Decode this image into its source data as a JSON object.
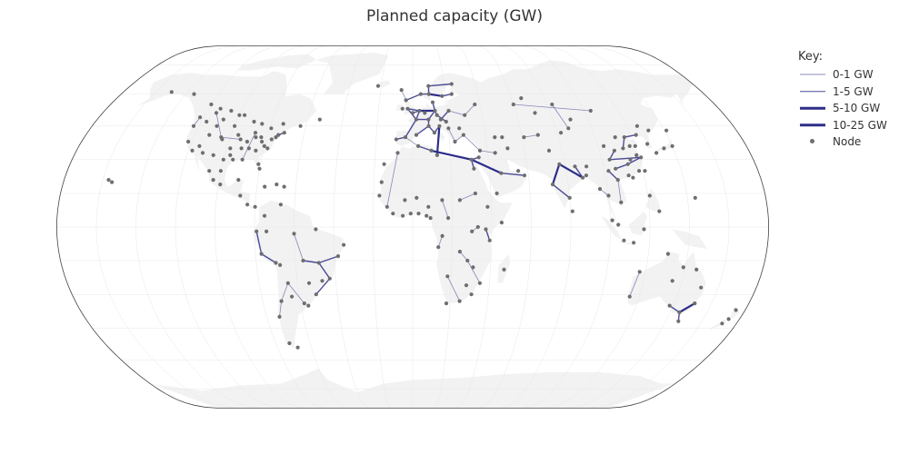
{
  "map": {
    "title": "Planned capacity (GW)",
    "projection": "natural-earth",
    "colors": {
      "ocean": "#ffffff",
      "land": "#f2f2f2",
      "graticule": "#e8e8e8",
      "frame": "#444444",
      "node": "#6e6e6e",
      "line": "#2d2d8a"
    }
  },
  "legend": {
    "title": "Key:",
    "items": [
      {
        "label": "0-1 GW",
        "kind": "line",
        "opacity": 0.55
      },
      {
        "label": "1-5 GW",
        "kind": "line",
        "opacity": 0.85
      },
      {
        "label": "5-10 GW",
        "kind": "line",
        "opacity": 1
      },
      {
        "label": "10-25 GW",
        "kind": "line",
        "opacity": 1
      },
      {
        "label": "Node",
        "kind": "dot",
        "opacity": 1
      }
    ]
  },
  "nodes": [
    [
      -122,
      49
    ],
    [
      -123,
      45
    ],
    [
      -122,
      38
    ],
    [
      -118,
      34
    ],
    [
      -112,
      33
    ],
    [
      -105,
      40
    ],
    [
      -97,
      32
    ],
    [
      -95,
      30
    ],
    [
      -90,
      30
    ],
    [
      -87,
      42
    ],
    [
      -84,
      34
    ],
    [
      -80,
      26
    ],
    [
      -80,
      36
    ],
    [
      -75,
      40
    ],
    [
      -74,
      41
    ],
    [
      -71,
      42
    ],
    [
      -79,
      44
    ],
    [
      -73,
      46
    ],
    [
      -104,
      39
    ],
    [
      -112,
      41
    ],
    [
      -115,
      36
    ],
    [
      -96,
      41
    ],
    [
      -94,
      39
    ],
    [
      -90,
      38
    ],
    [
      -86,
      40
    ],
    [
      -83,
      40
    ],
    [
      -81,
      28
    ],
    [
      -77,
      39
    ],
    [
      -100,
      50
    ],
    [
      -114,
      51
    ],
    [
      -113,
      53
    ],
    [
      -106,
      52
    ],
    [
      -97,
      50
    ],
    [
      -150,
      61
    ],
    [
      -135,
      60
    ],
    [
      -63,
      45
    ],
    [
      -53,
      48
    ],
    [
      -120,
      55
    ],
    [
      -110,
      45
    ],
    [
      -100,
      45
    ],
    [
      -117,
      47
    ],
    [
      -108,
      48
    ],
    [
      -90,
      47
    ],
    [
      -85,
      46
    ],
    [
      -78,
      35
    ],
    [
      -82,
      38
    ],
    [
      -88,
      35
    ],
    [
      -92,
      35
    ],
    [
      -98,
      35
    ],
    [
      -100,
      30
    ],
    [
      -106,
      32
    ],
    [
      -155,
      20
    ],
    [
      -99,
      19
    ],
    [
      -103,
      21
    ],
    [
      -90,
      21
    ],
    [
      -106,
      25
    ],
    [
      -100,
      25
    ],
    [
      -88,
      14
    ],
    [
      -84,
      10
    ],
    [
      -80,
      9
    ],
    [
      -76,
      18
    ],
    [
      -70,
      19
    ],
    [
      -66,
      18
    ],
    [
      -75,
      5
    ],
    [
      -74,
      -2
    ],
    [
      -67,
      10
    ],
    [
      -79,
      -2
    ],
    [
      -77,
      -12
    ],
    [
      -70,
      -16
    ],
    [
      -68,
      -17
    ],
    [
      -65,
      -25
    ],
    [
      -70,
      -33
    ],
    [
      -73,
      -40
    ],
    [
      -58,
      -34
    ],
    [
      -56,
      -35
    ],
    [
      -64,
      -31
    ],
    [
      -48,
      -16
    ],
    [
      -51,
      -30
    ],
    [
      -47,
      -24
    ],
    [
      -43,
      -23
    ],
    [
      -38,
      -13
    ],
    [
      -35,
      -8
    ],
    [
      -49,
      -1
    ],
    [
      -60,
      -3
    ],
    [
      -56,
      -15
    ],
    [
      -54,
      -25
    ],
    [
      -72,
      -52
    ],
    [
      -68,
      -54
    ],
    [
      -9,
      39
    ],
    [
      -4,
      40
    ],
    [
      2,
      41
    ],
    [
      2,
      48
    ],
    [
      0,
      51
    ],
    [
      -3,
      53
    ],
    [
      -6,
      53
    ],
    [
      4,
      52
    ],
    [
      7,
      51
    ],
    [
      9,
      48
    ],
    [
      13,
      52
    ],
    [
      14,
      50
    ],
    [
      16,
      48
    ],
    [
      19,
      47
    ],
    [
      21,
      52
    ],
    [
      12,
      42
    ],
    [
      9,
      45
    ],
    [
      23,
      38
    ],
    [
      26,
      44
    ],
    [
      28,
      41
    ],
    [
      30,
      50
    ],
    [
      37,
      55
    ],
    [
      24,
      60
    ],
    [
      18,
      59
    ],
    [
      10,
      60
    ],
    [
      10,
      64
    ],
    [
      25,
      65
    ],
    [
      -22,
      64
    ],
    [
      5,
      60
    ],
    [
      -4,
      57
    ],
    [
      12,
      56
    ],
    [
      15,
      45
    ],
    [
      20,
      44
    ],
    [
      -7,
      62
    ],
    [
      -8,
      33
    ],
    [
      3,
      36
    ],
    [
      10,
      34
    ],
    [
      13,
      32
    ],
    [
      31,
      30
    ],
    [
      32,
      26
    ],
    [
      -17,
      14
    ],
    [
      -4,
      12
    ],
    [
      2,
      13
    ],
    [
      8,
      9
    ],
    [
      -1,
      6
    ],
    [
      7,
      5
    ],
    [
      3,
      6
    ],
    [
      -13,
      9
    ],
    [
      -10,
      6
    ],
    [
      -5,
      5
    ],
    [
      9,
      4
    ],
    [
      15,
      12
    ],
    [
      18,
      4
    ],
    [
      24,
      12
    ],
    [
      32,
      15
    ],
    [
      38,
      9
    ],
    [
      45,
      2
    ],
    [
      37,
      -1
    ],
    [
      30,
      -2
    ],
    [
      33,
      0
    ],
    [
      39,
      -6
    ],
    [
      15,
      -4
    ],
    [
      24,
      -11
    ],
    [
      28,
      -15
    ],
    [
      31,
      -18
    ],
    [
      35,
      -25
    ],
    [
      28,
      -26
    ],
    [
      18,
      -22
    ],
    [
      25,
      -33
    ],
    [
      18,
      -34
    ],
    [
      31,
      -30
    ],
    [
      47,
      -19
    ],
    [
      13,
      -9
    ],
    [
      -15,
      28
    ],
    [
      -16,
      20
    ],
    [
      35,
      31
    ],
    [
      36,
      34
    ],
    [
      44,
      33
    ],
    [
      51,
      35
    ],
    [
      46,
      24
    ],
    [
      55,
      25
    ],
    [
      58,
      23
    ],
    [
      43,
      15
    ],
    [
      69,
      41
    ],
    [
      71,
      51
    ],
    [
      60,
      55
    ],
    [
      66,
      58
    ],
    [
      83,
      55
    ],
    [
      104,
      52
    ],
    [
      131,
      43
    ],
    [
      82,
      42
    ],
    [
      73,
      34
    ],
    [
      77,
      28
    ],
    [
      72,
      19
    ],
    [
      80,
      13
    ],
    [
      88,
      22
    ],
    [
      85,
      27
    ],
    [
      90,
      23
    ],
    [
      96,
      17
    ],
    [
      100,
      14
    ],
    [
      106,
      11
    ],
    [
      106,
      21
    ],
    [
      101,
      3
    ],
    [
      104,
      1
    ],
    [
      107,
      -6
    ],
    [
      112,
      -7
    ],
    [
      117,
      -1
    ],
    [
      121,
      14
    ],
    [
      125,
      7
    ],
    [
      114,
      22
    ],
    [
      121,
      31
    ],
    [
      116,
      40
    ],
    [
      113,
      35
    ],
    [
      117,
      36
    ],
    [
      120,
      36
    ],
    [
      104,
      30
    ],
    [
      108,
      34
    ],
    [
      87,
      44
    ],
    [
      103,
      36
    ],
    [
      111,
      40
    ],
    [
      127,
      37
    ],
    [
      126,
      45
    ],
    [
      130,
      33
    ],
    [
      135,
      35
    ],
    [
      140,
      36
    ],
    [
      141,
      43
    ],
    [
      121,
      25
    ],
    [
      81,
      7
    ],
    [
      91,
      27
    ],
    [
      45,
      40
    ],
    [
      49,
      40
    ],
    [
      90,
      48
    ],
    [
      61,
      40
    ],
    [
      113,
      28
    ],
    [
      118,
      25
    ],
    [
      123,
      41
    ],
    [
      112,
      23
    ],
    [
      102,
      25
    ],
    [
      106,
      26
    ],
    [
      115,
      30
    ],
    [
      119,
      32
    ],
    [
      115,
      -31
    ],
    [
      117,
      -20
    ],
    [
      130,
      -12
    ],
    [
      139,
      -18
    ],
    [
      146,
      -19
    ],
    [
      151,
      -27
    ],
    [
      151,
      -34
    ],
    [
      145,
      -38
    ],
    [
      138,
      -35
    ],
    [
      147,
      -42
    ],
    [
      175,
      -37
    ],
    [
      172,
      -43
    ],
    [
      174,
      -41
    ],
    [
      -157,
      21
    ],
    [
      144,
      13
    ],
    [
      135,
      -24
    ]
  ],
  "links": [
    [
      [
        -3,
        53
      ],
      [
        2,
        48
      ],
      2
    ],
    [
      [
        2,
        48
      ],
      [
        4,
        52
      ],
      2
    ],
    [
      [
        4,
        52
      ],
      [
        13,
        52
      ],
      3
    ],
    [
      [
        13,
        52
      ],
      [
        14,
        50
      ],
      2
    ],
    [
      [
        9,
        48
      ],
      [
        13,
        52
      ],
      2
    ],
    [
      [
        2,
        48
      ],
      [
        9,
        48
      ],
      2
    ],
    [
      [
        0,
        51
      ],
      [
        4,
        52
      ],
      2
    ],
    [
      [
        -9,
        39
      ],
      [
        -4,
        40
      ],
      2
    ],
    [
      [
        -4,
        40
      ],
      [
        2,
        48
      ],
      2
    ],
    [
      [
        -4,
        40
      ],
      [
        3,
        36
      ],
      1
    ],
    [
      [
        2,
        41
      ],
      [
        9,
        45
      ],
      2
    ],
    [
      [
        9,
        45
      ],
      [
        12,
        42
      ],
      2
    ],
    [
      [
        14,
        50
      ],
      [
        19,
        47
      ],
      2
    ],
    [
      [
        16,
        48
      ],
      [
        21,
        52
      ],
      2
    ],
    [
      [
        21,
        52
      ],
      [
        30,
        50
      ],
      1
    ],
    [
      [
        30,
        50
      ],
      [
        37,
        55
      ],
      1
    ],
    [
      [
        10,
        60
      ],
      [
        18,
        59
      ],
      3
    ],
    [
      [
        18,
        59
      ],
      [
        24,
        60
      ],
      2
    ],
    [
      [
        5,
        60
      ],
      [
        10,
        60
      ],
      2
    ],
    [
      [
        10,
        60
      ],
      [
        10,
        64
      ],
      2
    ],
    [
      [
        10,
        64
      ],
      [
        25,
        65
      ],
      2
    ],
    [
      [
        -3,
        53
      ],
      [
        4,
        52
      ],
      2
    ],
    [
      [
        12,
        56
      ],
      [
        13,
        52
      ],
      2
    ],
    [
      [
        -4,
        57
      ],
      [
        5,
        60
      ],
      2
    ],
    [
      [
        -7,
        62
      ],
      [
        -4,
        57
      ],
      1
    ],
    [
      [
        9,
        48
      ],
      [
        9,
        45
      ],
      2
    ],
    [
      [
        20,
        44
      ],
      [
        23,
        38
      ],
      1
    ],
    [
      [
        23,
        38
      ],
      [
        28,
        41
      ],
      1
    ],
    [
      [
        10,
        34
      ],
      [
        31,
        30
      ],
      3
    ],
    [
      [
        13,
        32
      ],
      [
        15,
        45
      ],
      3
    ],
    [
      [
        31,
        30
      ],
      [
        32,
        26
      ],
      2
    ],
    [
      [
        31,
        30
      ],
      [
        35,
        31
      ],
      2
    ],
    [
      [
        28,
        41
      ],
      [
        36,
        34
      ],
      1
    ],
    [
      [
        36,
        34
      ],
      [
        44,
        33
      ],
      1
    ],
    [
      [
        31,
        30
      ],
      [
        46,
        24
      ],
      3
    ],
    [
      [
        46,
        24
      ],
      [
        58,
        23
      ],
      2
    ],
    [
      [
        10,
        34
      ],
      [
        3,
        36
      ],
      2
    ],
    [
      [
        12,
        42
      ],
      [
        15,
        45
      ],
      2
    ],
    [
      [
        72,
        19
      ],
      [
        77,
        28
      ],
      3
    ],
    [
      [
        77,
        28
      ],
      [
        88,
        22
      ],
      3
    ],
    [
      [
        72,
        19
      ],
      [
        80,
        13
      ],
      2
    ],
    [
      [
        85,
        27
      ],
      [
        88,
        22
      ],
      2
    ],
    [
      [
        104,
        30
      ],
      [
        121,
        31
      ],
      2
    ],
    [
      [
        113,
        35
      ],
      [
        116,
        40
      ],
      2
    ],
    [
      [
        116,
        40
      ],
      [
        123,
        41
      ],
      2
    ],
    [
      [
        106,
        26
      ],
      [
        113,
        28
      ],
      2
    ],
    [
      [
        113,
        28
      ],
      [
        121,
        31
      ],
      2
    ],
    [
      [
        102,
        25
      ],
      [
        106,
        21
      ],
      2
    ],
    [
      [
        106,
        21
      ],
      [
        106,
        11
      ],
      1
    ],
    [
      [
        104,
        30
      ],
      [
        108,
        34
      ],
      2
    ],
    [
      [
        87,
        44
      ],
      [
        83,
        55
      ],
      1
    ],
    [
      [
        60,
        55
      ],
      [
        104,
        52
      ],
      1
    ],
    [
      [
        69,
        41
      ],
      [
        61,
        40
      ],
      1
    ],
    [
      [
        96,
        17
      ],
      [
        100,
        14
      ],
      1
    ],
    [
      [
        -70,
        -16
      ],
      [
        -77,
        -12
      ],
      2
    ],
    [
      [
        -77,
        -12
      ],
      [
        -79,
        -2
      ],
      2
    ],
    [
      [
        -70,
        -33
      ],
      [
        -73,
        -40
      ],
      1
    ],
    [
      [
        -65,
        -25
      ],
      [
        -58,
        -34
      ],
      1
    ],
    [
      [
        -65,
        -25
      ],
      [
        -70,
        -33
      ],
      1
    ],
    [
      [
        -56,
        -15
      ],
      [
        -48,
        -16
      ],
      2
    ],
    [
      [
        -48,
        -16
      ],
      [
        -43,
        -23
      ],
      2
    ],
    [
      [
        -43,
        -23
      ],
      [
        -51,
        -30
      ],
      2
    ],
    [
      [
        -48,
        -16
      ],
      [
        -38,
        -13
      ],
      2
    ],
    [
      [
        -60,
        -3
      ],
      [
        -56,
        -15
      ],
      1
    ],
    [
      [
        -87,
        42
      ],
      [
        -90,
        30
      ],
      1
    ],
    [
      [
        -122,
        49
      ],
      [
        -123,
        45
      ],
      1
    ],
    [
      [
        -105,
        40
      ],
      [
        -94,
        39
      ],
      1
    ],
    [
      [
        -75,
        40
      ],
      [
        -74,
        41
      ],
      2
    ],
    [
      [
        -74,
        41
      ],
      [
        -71,
        42
      ],
      2
    ],
    [
      [
        -114,
        51
      ],
      [
        -105,
        40
      ],
      1
    ],
    [
      [
        -8,
        33
      ],
      [
        -13,
        9
      ],
      1
    ],
    [
      [
        18,
        4
      ],
      [
        15,
        12
      ],
      1
    ],
    [
      [
        24,
        12
      ],
      [
        32,
        15
      ],
      1
    ],
    [
      [
        37,
        -1
      ],
      [
        39,
        -6
      ],
      2
    ],
    [
      [
        28,
        -15
      ],
      [
        35,
        -25
      ],
      1
    ],
    [
      [
        30,
        -2
      ],
      [
        33,
        0
      ],
      1
    ],
    [
      [
        15,
        -4
      ],
      [
        13,
        -9
      ],
      1
    ],
    [
      [
        24,
        -11
      ],
      [
        28,
        -15
      ],
      1
    ],
    [
      [
        18,
        -22
      ],
      [
        25,
        -33
      ],
      1
    ],
    [
      [
        145,
        -38
      ],
      [
        151,
        -34
      ],
      3
    ],
    [
      [
        138,
        -35
      ],
      [
        145,
        -38
      ],
      2
    ],
    [
      [
        145,
        -38
      ],
      [
        147,
        -42
      ],
      2
    ],
    [
      [
        115,
        -31
      ],
      [
        117,
        -20
      ],
      1
    ]
  ]
}
